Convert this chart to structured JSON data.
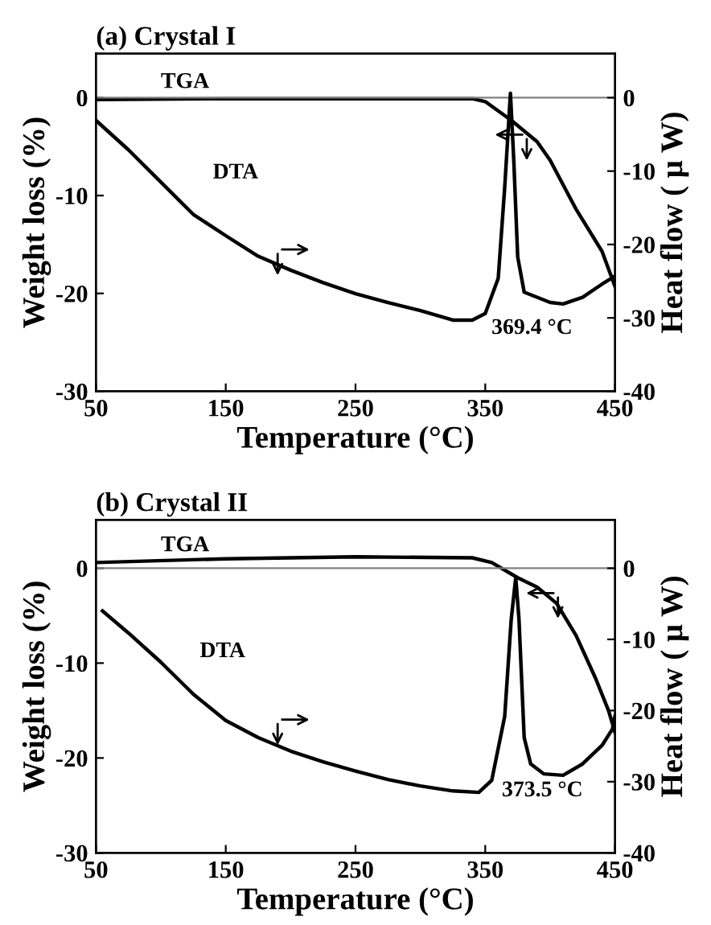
{
  "chart_data": [
    {
      "type": "line",
      "title": "(a) Crystal I",
      "xlabel": "Temperature (°C)",
      "ylabel": "Weight loss (%)",
      "y2label": "Heat flow ( μ W)",
      "xlim": [
        50,
        450
      ],
      "xticks": [
        50,
        150,
        250,
        350,
        450
      ],
      "ylim": [
        -30,
        4.5
      ],
      "yticks": [
        0,
        -10,
        -20,
        -30
      ],
      "y2lim": [
        -40,
        6
      ],
      "y2ticks": [
        0,
        -10,
        -20,
        -30,
        -40
      ],
      "grid": false,
      "legend": false,
      "marker": "none",
      "line_style": "solid",
      "ref_lines": [
        {
          "axis": "y",
          "value": 0,
          "color": "#808080"
        }
      ],
      "annotations": [
        "369.4 °C"
      ],
      "series": [
        {
          "name": "TGA",
          "color": "#000000",
          "x": [
            50,
            150,
            250,
            340,
            350,
            370,
            390,
            400,
            420,
            440,
            450
          ],
          "values": [
            -0.2,
            -0.1,
            -0.1,
            -0.1,
            -0.4,
            -2.3,
            -4.5,
            -6.4,
            -11.4,
            -15.7,
            -19.3
          ]
        },
        {
          "name": "DTA",
          "color": "#000000",
          "axis": "y2",
          "x": [
            50,
            75,
            100,
            125,
            150,
            175,
            200,
            225,
            250,
            275,
            300,
            325,
            340,
            350,
            360,
            365,
            369.4,
            372,
            375,
            380,
            400,
            410,
            425,
            440,
            450
          ],
          "values": [
            -3.1,
            -7.1,
            -11.5,
            -15.9,
            -18.8,
            -21.6,
            -23.5,
            -25.2,
            -26.7,
            -27.9,
            -29.0,
            -30.3,
            -30.3,
            -29.4,
            -24.6,
            -12.2,
            0.6,
            -8.6,
            -21.7,
            -26.5,
            -27.9,
            -28.1,
            -27.2,
            -25.4,
            -24.3
          ]
        }
      ]
    },
    {
      "type": "line",
      "title": "(b) Crystal II",
      "xlabel": "Temperature (°C)",
      "ylabel": "Weight loss (%)",
      "y2label": "Heat flow ( μ W)",
      "xlim": [
        50,
        450
      ],
      "xticks": [
        50,
        150,
        250,
        350,
        450
      ],
      "ylim": [
        -30,
        5.1
      ],
      "yticks": [
        0,
        -10,
        -20,
        -30
      ],
      "y2lim": [
        -40,
        6.8
      ],
      "y2ticks": [
        0,
        -10,
        -20,
        -30,
        -40
      ],
      "grid": false,
      "legend": false,
      "marker": "none",
      "line_style": "solid",
      "ref_lines": [
        {
          "axis": "y",
          "value": 0,
          "color": "#808080"
        }
      ],
      "annotations": [
        "373.5 °C"
      ],
      "series": [
        {
          "name": "TGA",
          "color": "#000000",
          "x": [
            50,
            150,
            250,
            340,
            355,
            375,
            390,
            405,
            420,
            435,
            445,
            450
          ],
          "values": [
            0.6,
            1.0,
            1.2,
            1.1,
            0.6,
            -1.0,
            -2.0,
            -3.7,
            -7.1,
            -11.6,
            -15.0,
            -17.3
          ]
        },
        {
          "name": "DTA",
          "color": "#000000",
          "axis": "y2",
          "x": [
            55,
            75,
            100,
            125,
            150,
            175,
            200,
            225,
            250,
            275,
            300,
            325,
            345,
            355,
            365,
            370,
            373.5,
            376,
            380,
            385,
            395,
            410,
            425,
            440,
            448,
            450
          ],
          "values": [
            -6.0,
            -9.1,
            -13.2,
            -17.7,
            -21.4,
            -23.8,
            -25.7,
            -27.2,
            -28.5,
            -29.7,
            -30.6,
            -31.3,
            -31.5,
            -29.8,
            -20.8,
            -7.2,
            -1.3,
            -7.2,
            -23.8,
            -27.5,
            -28.9,
            -29.1,
            -27.5,
            -24.9,
            -22.6,
            -20.8
          ]
        }
      ]
    }
  ]
}
